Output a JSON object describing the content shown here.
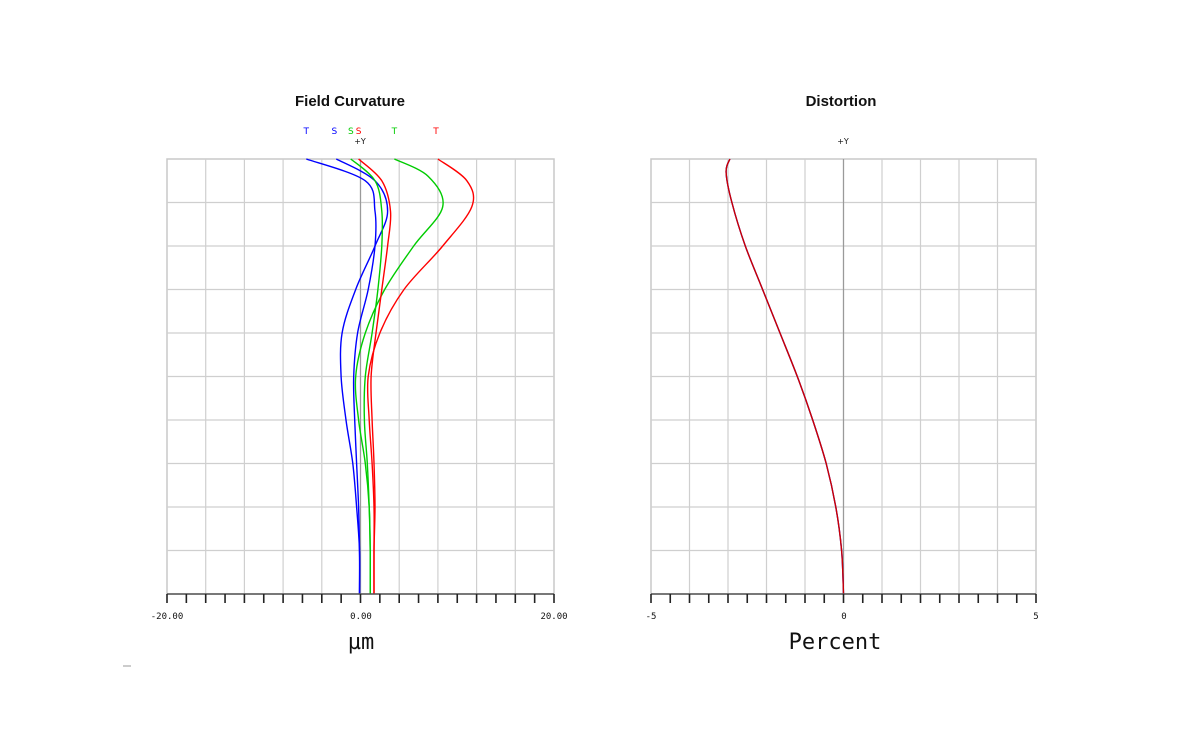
{
  "chart_data": [
    {
      "type": "line",
      "title": "Field Curvature",
      "xlabel": "µm",
      "field_label": "+Y",
      "x_tick_labels": [
        "-20.00",
        "0.00",
        "20.00"
      ],
      "xlim": [
        -20,
        20
      ],
      "ylim": [
        0,
        1
      ],
      "grid": true,
      "legend_items": [
        {
          "label": "T",
          "color": "#0000ff",
          "x": -5.6
        },
        {
          "label": "S",
          "color": "#0000ff",
          "x": -2.7
        },
        {
          "label": "S",
          "color": "#00cc00",
          "x": -1.0
        },
        {
          "label": "S",
          "color": "#ff0000",
          "x": -0.2
        },
        {
          "label": "T",
          "color": "#00cc00",
          "x": 3.5
        },
        {
          "label": "T",
          "color": "#ff0000",
          "x": 7.8
        }
      ],
      "series": [
        {
          "color": "#0000ff",
          "points": [
            [
              -0.1,
              0
            ],
            [
              -0.1,
              0.1
            ],
            [
              -0.4,
              0.2
            ],
            [
              -0.8,
              0.3
            ],
            [
              -1.5,
              0.4
            ],
            [
              -2.0,
              0.5
            ],
            [
              -1.9,
              0.6
            ],
            [
              -0.5,
              0.7
            ],
            [
              1.5,
              0.8
            ],
            [
              2.8,
              0.88
            ],
            [
              1.5,
              0.95
            ],
            [
              -2.5,
              1.0
            ]
          ]
        },
        {
          "color": "#0000ff",
          "points": [
            [
              -0.1,
              0
            ],
            [
              -0.1,
              0.1
            ],
            [
              -0.2,
              0.2
            ],
            [
              -0.4,
              0.3
            ],
            [
              -0.6,
              0.4
            ],
            [
              -0.7,
              0.5
            ],
            [
              -0.3,
              0.6
            ],
            [
              0.8,
              0.7
            ],
            [
              1.5,
              0.8
            ],
            [
              1.5,
              0.88
            ],
            [
              0.5,
              0.95
            ],
            [
              -5.6,
              1.0
            ]
          ]
        },
        {
          "color": "#00cc00",
          "points": [
            [
              1.0,
              0
            ],
            [
              1.0,
              0.1
            ],
            [
              0.9,
              0.2
            ],
            [
              0.7,
              0.3
            ],
            [
              0.4,
              0.4
            ],
            [
              0.5,
              0.5
            ],
            [
              1.2,
              0.6
            ],
            [
              1.8,
              0.7
            ],
            [
              2.2,
              0.8
            ],
            [
              2.2,
              0.88
            ],
            [
              1.5,
              0.95
            ],
            [
              -1.0,
              1.0
            ]
          ]
        },
        {
          "color": "#00cc00",
          "points": [
            [
              1.0,
              0
            ],
            [
              1.0,
              0.1
            ],
            [
              0.9,
              0.2
            ],
            [
              0.5,
              0.3
            ],
            [
              -0.2,
              0.4
            ],
            [
              -0.5,
              0.5
            ],
            [
              0.5,
              0.6
            ],
            [
              2.5,
              0.7
            ],
            [
              5.5,
              0.8
            ],
            [
              8.5,
              0.89
            ],
            [
              7.0,
              0.96
            ],
            [
              3.5,
              1.0
            ]
          ]
        },
        {
          "color": "#ff0000",
          "points": [
            [
              1.4,
              0
            ],
            [
              1.4,
              0.1
            ],
            [
              1.5,
              0.2
            ],
            [
              1.4,
              0.3
            ],
            [
              1.2,
              0.4
            ],
            [
              1.1,
              0.5
            ],
            [
              1.6,
              0.6
            ],
            [
              2.2,
              0.7
            ],
            [
              2.8,
              0.8
            ],
            [
              3.1,
              0.88
            ],
            [
              2.2,
              0.95
            ],
            [
              -0.2,
              1.0
            ]
          ]
        },
        {
          "color": "#ff0000",
          "points": [
            [
              1.4,
              0
            ],
            [
              1.4,
              0.1
            ],
            [
              1.4,
              0.2
            ],
            [
              1.2,
              0.3
            ],
            [
              0.9,
              0.4
            ],
            [
              0.8,
              0.5
            ],
            [
              2.0,
              0.6
            ],
            [
              4.5,
              0.7
            ],
            [
              8.5,
              0.8
            ],
            [
              11.5,
              0.89
            ],
            [
              11.0,
              0.95
            ],
            [
              8.0,
              1.0
            ]
          ]
        }
      ]
    },
    {
      "type": "line",
      "title": "Distortion",
      "xlabel": "Percent",
      "field_label": "+Y",
      "x_tick_labels": [
        "-5",
        "0",
        "5"
      ],
      "xlim": [
        -5,
        5
      ],
      "ylim": [
        0,
        1
      ],
      "grid": true,
      "series": [
        {
          "color": "#0000ff",
          "points": [
            [
              0,
              0
            ],
            [
              -0.05,
              0.1
            ],
            [
              -0.2,
              0.2
            ],
            [
              -0.45,
              0.3
            ],
            [
              -0.8,
              0.4
            ],
            [
              -1.2,
              0.5
            ],
            [
              -1.65,
              0.6
            ],
            [
              -2.1,
              0.7
            ],
            [
              -2.55,
              0.8
            ],
            [
              -2.9,
              0.9
            ],
            [
              -3.05,
              0.97
            ],
            [
              -2.95,
              1.0
            ]
          ]
        },
        {
          "color": "#cc0000",
          "points": [
            [
              0,
              0
            ],
            [
              -0.05,
              0.1
            ],
            [
              -0.2,
              0.2
            ],
            [
              -0.45,
              0.3
            ],
            [
              -0.8,
              0.4
            ],
            [
              -1.2,
              0.5
            ],
            [
              -1.65,
              0.6
            ],
            [
              -2.1,
              0.7
            ],
            [
              -2.55,
              0.8
            ],
            [
              -2.9,
              0.9
            ],
            [
              -3.05,
              0.97
            ],
            [
              -2.95,
              1.0
            ]
          ]
        }
      ]
    }
  ]
}
